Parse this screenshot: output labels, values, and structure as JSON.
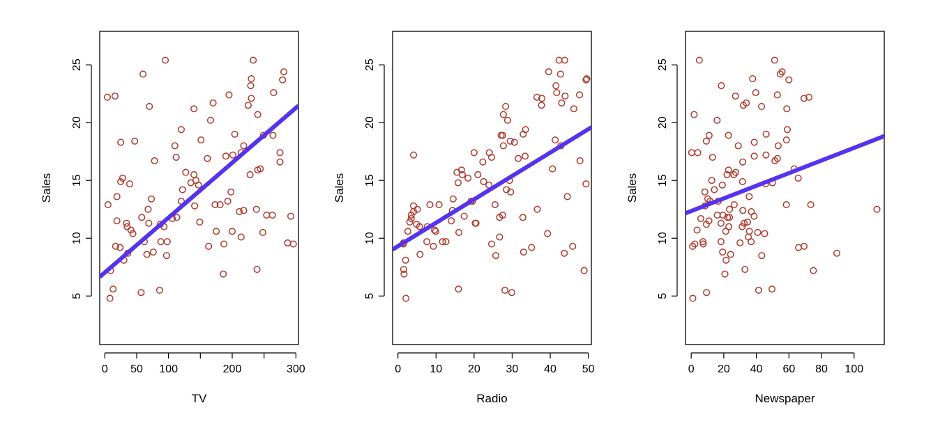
{
  "chart_data": [
    {
      "type": "scatter",
      "title": "",
      "xlabel": "TV",
      "ylabel": "Sales",
      "xlim": [
        -8,
        304
      ],
      "ylim": [
        0.8,
        27.9
      ],
      "xticks": [
        0,
        50,
        100,
        150,
        200,
        250,
        300
      ],
      "xtick_labels": [
        "0",
        "50",
        "100",
        "",
        "200",
        "",
        "300"
      ],
      "yticks": [
        5,
        10,
        15,
        20,
        25
      ],
      "ytick_labels": [
        "5",
        "10",
        "15",
        "20",
        "25"
      ],
      "grid": false,
      "point_color": "#b03a2e",
      "line_color": "#5533ee",
      "fit_line": {
        "intercept": 7.03,
        "slope": 0.0475
      },
      "x": [
        230,
        44,
        17,
        151,
        181,
        9,
        58,
        120,
        8,
        200,
        66,
        214,
        24,
        98,
        204,
        195,
        68,
        281,
        69,
        147,
        218,
        238,
        13,
        228,
        62,
        263,
        143,
        240,
        249,
        248,
        70,
        292,
        287,
        275,
        296,
        141,
        233,
        39,
        214,
        225,
        275,
        190,
        240,
        5,
        97,
        25,
        175,
        229,
        135,
        88,
        149,
        41,
        265,
        140,
        166,
        279,
        86,
        193,
        230,
        47,
        30,
        60,
        127,
        198,
        110,
        163,
        187,
        73,
        264,
        16,
        25,
        218,
        76,
        93,
        112,
        36,
        186,
        122,
        57,
        35,
        113,
        211,
        34,
        19,
        170,
        28,
        254,
        244,
        173,
        78,
        87,
        239,
        120,
        4,
        19,
        161,
        106,
        140,
        95,
        201
      ],
      "y": [
        22.1,
        10.4,
        9.3,
        18.5,
        12.9,
        7.2,
        11.8,
        13.2,
        4.8,
        10.6,
        8.6,
        17.4,
        9.2,
        9.7,
        19.0,
        22.4,
        12.5,
        24.4,
        11.3,
        14.6,
        18.0,
        12.5,
        5.6,
        15.5,
        9.7,
        12.0,
        15.0,
        15.9,
        18.9,
        10.5,
        21.4,
        11.9,
        9.6,
        17.4,
        9.5,
        12.8,
        25.4,
        14.7,
        10.1,
        21.5,
        16.6,
        17.1,
        20.7,
        12.9,
        8.5,
        14.9,
        10.6,
        23.2,
        14.8,
        9.7,
        11.4,
        10.7,
        22.6,
        21.2,
        20.2,
        23.7,
        5.5,
        13.2,
        23.8,
        18.4,
        8.1,
        24.2,
        15.7,
        14.0,
        18.0,
        9.3,
        9.5,
        13.4,
        18.9,
        22.3,
        18.3,
        12.4,
        8.8,
        11.0,
        17.0,
        8.7,
        6.9,
        14.2,
        5.3,
        11.0,
        11.8,
        12.3,
        11.3,
        13.6,
        21.7,
        15.2,
        12.0,
        16.0,
        12.9,
        16.7,
        11.2,
        7.3,
        19.4,
        22.2,
        11.5,
        16.9,
        11.7,
        15.5,
        25.4,
        17.2
      ]
    },
    {
      "type": "scatter",
      "title": "",
      "xlabel": "Radio",
      "ylabel": "Sales",
      "xlim": [
        -1.4,
        50.8
      ],
      "ylim": [
        0.8,
        27.9
      ],
      "xticks": [
        0,
        10,
        20,
        30,
        40,
        50
      ],
      "xtick_labels": [
        "0",
        "10",
        "20",
        "30",
        "40",
        "50"
      ],
      "yticks": [
        5,
        10,
        15,
        20,
        25
      ],
      "ytick_labels": [
        "5",
        "10",
        "15",
        "20",
        "25"
      ],
      "grid": false,
      "point_color": "#b03a2e",
      "line_color": "#5533ee",
      "fit_line": {
        "intercept": 9.31,
        "slope": 0.2025
      },
      "x": [
        37.8,
        39.3,
        45.9,
        41.3,
        10.8,
        48.9,
        32.8,
        19.6,
        2.1,
        2.6,
        5.8,
        24.0,
        35.1,
        7.6,
        32.9,
        47.7,
        36.6,
        39.6,
        20.5,
        23.9,
        27.7,
        5.1,
        15.9,
        16.9,
        12.6,
        3.5,
        29.3,
        16.7,
        27.1,
        16.0,
        28.3,
        17.4,
        1.5,
        20.0,
        1.4,
        4.1,
        43.8,
        49.4,
        26.7,
        37.7,
        22.3,
        33.4,
        27.7,
        8.4,
        25.7,
        22.5,
        9.9,
        41.5,
        15.8,
        11.7,
        3.1,
        9.6,
        41.7,
        46.2,
        28.8,
        49.4,
        28.1,
        19.2,
        49.6,
        29.5,
        2.0,
        42.7,
        15.5,
        29.6,
        42.8,
        9.3,
        24.6,
        14.5,
        27.5,
        43.9,
        30.6,
        14.3,
        33.0,
        5.7,
        24.6,
        43.7,
        1.6,
        28.5,
        29.9,
        7.7,
        26.7,
        4.1,
        20.3,
        44.5,
        43.0,
        18.4,
        27.5,
        40.6,
        25.5,
        47.8,
        4.9,
        1.5,
        33.5,
        36.5,
        14.0,
        31.6,
        3.5,
        21.0,
        42.3,
        4.1
      ],
      "y": [
        22.1,
        10.4,
        9.3,
        18.5,
        12.9,
        7.2,
        11.8,
        13.2,
        4.8,
        10.6,
        8.6,
        17.4,
        9.2,
        9.7,
        19.0,
        22.4,
        12.5,
        24.4,
        11.3,
        14.6,
        18.0,
        12.5,
        5.6,
        15.5,
        9.7,
        12.0,
        15.0,
        15.9,
        18.9,
        10.5,
        21.4,
        11.9,
        9.6,
        17.4,
        9.5,
        12.8,
        25.4,
        14.7,
        10.1,
        21.5,
        16.6,
        17.1,
        20.7,
        12.9,
        8.5,
        14.9,
        10.6,
        23.2,
        14.8,
        9.7,
        11.4,
        10.7,
        22.6,
        21.2,
        20.2,
        23.7,
        5.5,
        13.2,
        23.8,
        18.4,
        8.1,
        24.2,
        15.7,
        14.0,
        18.0,
        9.3,
        9.5,
        13.4,
        18.9,
        22.3,
        18.3,
        12.4,
        8.8,
        11.0,
        17.0,
        8.7,
        6.9,
        14.2,
        5.3,
        11.0,
        11.8,
        12.3,
        11.3,
        13.6,
        21.7,
        15.2,
        12.0,
        16.0,
        12.9,
        16.7,
        11.2,
        7.3,
        19.4,
        22.2,
        11.5,
        16.9,
        11.7,
        15.5,
        25.4,
        17.2
      ]
    },
    {
      "type": "scatter",
      "title": "",
      "xlabel": "Newspaper",
      "ylabel": "Sales",
      "xlim": [
        -3.5,
        118.5
      ],
      "ylim": [
        0.8,
        27.9
      ],
      "xticks": [
        0,
        20,
        40,
        60,
        80,
        100
      ],
      "xtick_labels": [
        "0",
        "20",
        "40",
        "60",
        "80",
        "100"
      ],
      "yticks": [
        5,
        10,
        15,
        20,
        25
      ],
      "ytick_labels": [
        "5",
        "10",
        "15",
        "20",
        "25"
      ],
      "grid": false,
      "point_color": "#b03a2e",
      "line_color": "#5533ee",
      "fit_line": {
        "intercept": 12.35,
        "slope": 0.0547
      },
      "x": [
        69.2,
        45.1,
        69.3,
        58.5,
        58.4,
        75.0,
        23.5,
        11.6,
        1.0,
        21.2,
        24.2,
        4.0,
        65.9,
        7.2,
        46.0,
        52.9,
        114.0,
        55.8,
        18.3,
        19.1,
        53.4,
        23.5,
        49.6,
        26.2,
        18.3,
        19.5,
        12.6,
        22.9,
        22.9,
        40.8,
        43.2,
        38.6,
        30.0,
        0.3,
        7.4,
        8.5,
        5.0,
        45.7,
        35.1,
        32.0,
        31.6,
        38.7,
        1.8,
        26.4,
        43.3,
        31.5,
        35.7,
        18.5,
        49.9,
        36.8,
        34.6,
        3.6,
        39.6,
        58.7,
        15.9,
        60.0,
        41.4,
        16.6,
        37.7,
        9.3,
        21.4,
        54.7,
        27.3,
        8.4,
        28.9,
        0.9,
        2.2,
        10.2,
        11.0,
        27.2,
        38.7,
        31.7,
        19.3,
        31.3,
        13.1,
        89.4,
        20.7,
        14.2,
        9.4,
        23.1,
        22.3,
        36.9,
        32.5,
        35.6,
        33.8,
        65.7,
        16.0,
        63.2,
        73.4,
        51.4,
        9.3,
        33.0,
        59.0,
        72.3,
        10.9,
        52.9,
        5.9,
        22.0,
        51.2,
        45.9
      ],
      "y": [
        22.1,
        10.4,
        9.3,
        18.5,
        12.9,
        7.2,
        11.8,
        13.2,
        4.8,
        10.6,
        8.6,
        17.4,
        9.2,
        9.7,
        19.0,
        22.4,
        12.5,
        24.4,
        11.3,
        14.6,
        18.0,
        12.5,
        5.6,
        15.5,
        9.7,
        12.0,
        15.0,
        15.9,
        18.9,
        10.5,
        21.4,
        11.9,
        9.6,
        17.4,
        9.5,
        12.8,
        25.4,
        14.7,
        10.1,
        21.5,
        16.6,
        17.1,
        20.7,
        12.9,
        8.5,
        14.9,
        10.6,
        23.2,
        14.8,
        9.7,
        11.4,
        10.7,
        22.6,
        21.2,
        20.2,
        23.7,
        5.5,
        13.2,
        23.8,
        18.4,
        8.1,
        24.2,
        15.7,
        14.0,
        18.0,
        9.3,
        9.5,
        13.4,
        18.9,
        22.3,
        18.3,
        12.4,
        8.8,
        11.0,
        17.0,
        8.7,
        6.9,
        14.2,
        5.3,
        11.0,
        11.8,
        12.3,
        11.3,
        13.6,
        21.7,
        15.2,
        12.0,
        16.0,
        12.9,
        16.7,
        11.2,
        7.3,
        19.4,
        22.2,
        11.5,
        16.9,
        11.7,
        15.5,
        25.4,
        17.2
      ]
    }
  ]
}
